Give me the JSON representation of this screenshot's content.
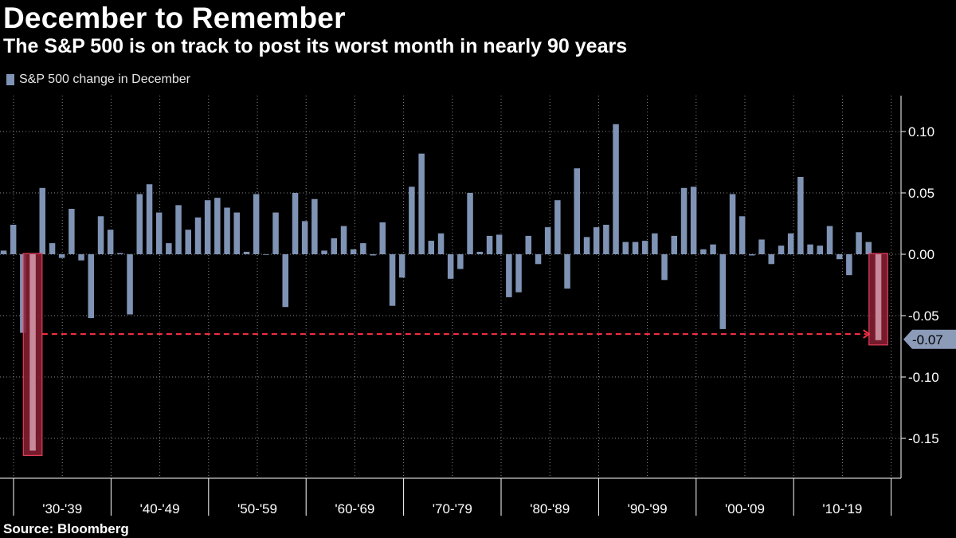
{
  "colors": {
    "background": "#000000",
    "bar": "#7f93b5",
    "highlight_fill": "#8b1e34",
    "highlight_stroke": "#e0405a",
    "highlight_bar": "#c8899a",
    "dashed_line": "#ff3045",
    "grid": "#8a8a8a",
    "callout_bg": "#8c9bb8"
  },
  "chart_data": {
    "type": "bar",
    "title": "December to Remember",
    "subtitle": "The S&P 500 is on track to post its worst month in nearly 90 years",
    "legend": [
      {
        "label": "S&P 500 change in December",
        "color": "#7f93b5"
      }
    ],
    "source": "Source: Bloomberg",
    "ylim": [
      -0.18,
      0.13
    ],
    "yticks": [
      0.1,
      0.05,
      0.0,
      -0.05,
      -0.1,
      -0.15
    ],
    "ytick_labels": [
      "0.10",
      "0.05",
      "0.00",
      "-0.05",
      "-0.10",
      "-0.15"
    ],
    "decades": [
      "'30-'39",
      "'40-'49",
      "'50-'59",
      "'60-'69",
      "'70-'79",
      "'80-'89",
      "'90-'99",
      "'00-'09",
      "'10-'19"
    ],
    "start_year": 1928,
    "values": [
      0.003,
      0.024,
      -0.064,
      -0.16,
      0.054,
      0.009,
      -0.003,
      0.037,
      -0.005,
      -0.052,
      0.031,
      0.02,
      0.001,
      -0.049,
      0.049,
      0.057,
      0.034,
      0.009,
      0.04,
      0.02,
      0.03,
      0.044,
      0.046,
      0.038,
      0.034,
      0.002,
      0.049,
      0.0,
      0.034,
      -0.043,
      0.05,
      0.027,
      0.045,
      0.003,
      0.013,
      0.023,
      0.004,
      0.009,
      -0.001,
      0.026,
      -0.042,
      -0.019,
      0.055,
      0.082,
      0.011,
      0.017,
      -0.02,
      -0.012,
      0.05,
      0.002,
      0.015,
      0.016,
      -0.035,
      -0.031,
      0.015,
      -0.008,
      0.022,
      0.044,
      -0.028,
      0.07,
      0.014,
      0.022,
      0.024,
      0.106,
      0.01,
      0.01,
      0.011,
      0.017,
      -0.021,
      0.015,
      0.054,
      0.055,
      0.004,
      0.008,
      -0.061,
      0.049,
      0.031,
      -0.001,
      0.012,
      -0.008,
      0.007,
      0.017,
      0.063,
      0.008,
      0.007,
      0.023,
      -0.004,
      -0.017,
      0.018,
      0.01,
      -0.07
    ],
    "highlights": [
      {
        "year": 1931,
        "value": -0.16
      },
      {
        "year": 2018,
        "value": -0.07
      }
    ],
    "reference_line": {
      "value": -0.065,
      "from_year": 1931,
      "to_year": 2018
    },
    "callout": {
      "value": -0.07,
      "label": "-0.07"
    }
  }
}
